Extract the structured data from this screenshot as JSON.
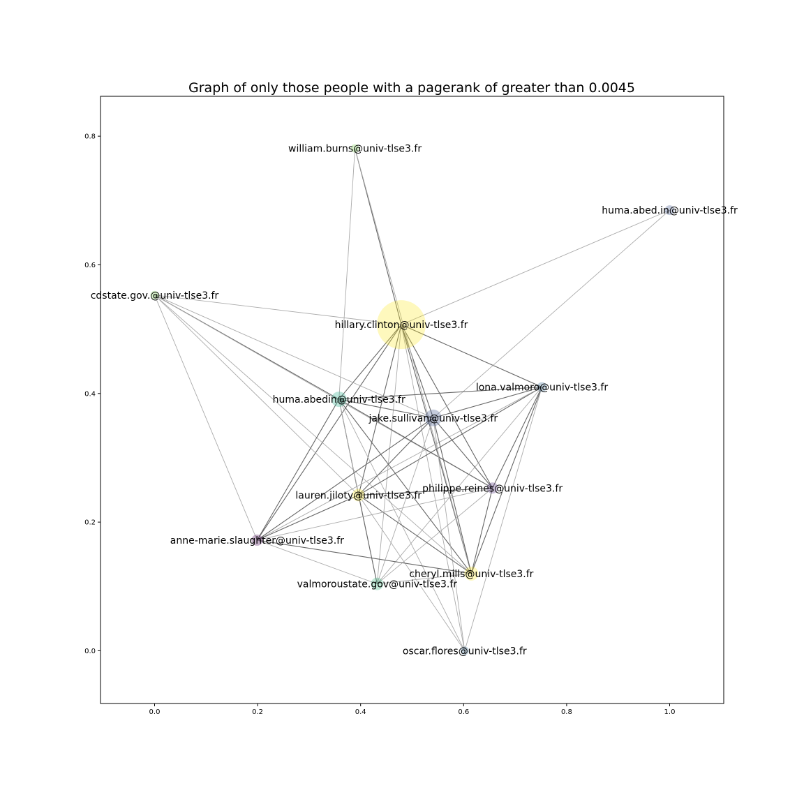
{
  "title": "Graph of only those people with a pagerank of greater than 0.0045",
  "chart_data": {
    "type": "network",
    "title": "Graph of only those people with a pagerank of greater than 0.0045",
    "xlim": [
      -0.105,
      1.105
    ],
    "ylim": [
      -0.082,
      0.862
    ],
    "x_ticks": [
      0.0,
      0.2,
      0.4,
      0.6,
      0.8,
      1.0
    ],
    "y_ticks": [
      0.0,
      0.2,
      0.4,
      0.6,
      0.8
    ],
    "x_tick_labels": [
      "0.0",
      "0.2",
      "0.4",
      "0.6",
      "0.8",
      "1.0"
    ],
    "y_tick_labels": [
      "0.0",
      "0.2",
      "0.4",
      "0.6",
      "0.8"
    ],
    "grid": false,
    "nodes": [
      {
        "id": "hillary",
        "label": "hillary.clinton@univ-tlse3.fr",
        "x": 0.479,
        "y": 0.507,
        "size": 35,
        "color": "#fde725"
      },
      {
        "id": "william",
        "label": "william.burns@univ-tlse3.fr",
        "x": 0.389,
        "y": 0.781,
        "size": 6,
        "color": "#7ad151"
      },
      {
        "id": "humaabedin2",
        "label": "huma.abed.in@univ-tlse3.fr",
        "x": 1.0,
        "y": 0.685,
        "size": 7,
        "color": "#3b528b"
      },
      {
        "id": "cdstate",
        "label": "cdstate.gov.@univ-tlse3.fr",
        "x": 0.0,
        "y": 0.553,
        "size": 6,
        "color": "#7ad151"
      },
      {
        "id": "lona",
        "label": "lona.valmoro@univ-tlse3.fr",
        "x": 0.752,
        "y": 0.41,
        "size": 7,
        "color": "#31688e"
      },
      {
        "id": "humaabedin",
        "label": "huma.abedin@univ-tlse3.fr",
        "x": 0.358,
        "y": 0.391,
        "size": 11,
        "color": "#22a884"
      },
      {
        "id": "jake",
        "label": "jake.sullivan@univ-tlse3.fr",
        "x": 0.541,
        "y": 0.362,
        "size": 12,
        "color": "#3b528b"
      },
      {
        "id": "philippe",
        "label": "philippe.reines@univ-tlse3.fr",
        "x": 0.656,
        "y": 0.253,
        "size": 8,
        "color": "#482878"
      },
      {
        "id": "lauren",
        "label": "lauren.jiloty@univ-tlse3.fr",
        "x": 0.396,
        "y": 0.242,
        "size": 9,
        "color": "#fde725"
      },
      {
        "id": "annemarie",
        "label": "anne-marie.slaughter@univ-tlse3.fr",
        "x": 0.199,
        "y": 0.172,
        "size": 8,
        "color": "#440154"
      },
      {
        "id": "cheryl",
        "label": "cheryl.mills@univ-tlse3.fr",
        "x": 0.615,
        "y": 0.12,
        "size": 10,
        "color": "#fde725"
      },
      {
        "id": "valmoroustate",
        "label": "valmoroustate.gov@univ-tlse3.fr",
        "x": 0.432,
        "y": 0.104,
        "size": 9,
        "color": "#35b779"
      },
      {
        "id": "oscar",
        "label": "oscar.flores@univ-tlse3.fr",
        "x": 0.602,
        "y": 0.0,
        "size": 6,
        "color": "#31688e"
      }
    ],
    "edges": [
      [
        "hillary",
        "william",
        1
      ],
      [
        "hillary",
        "humaabedin2",
        0
      ],
      [
        "hillary",
        "cdstate",
        0
      ],
      [
        "hillary",
        "lona",
        1
      ],
      [
        "hillary",
        "humaabedin",
        1
      ],
      [
        "hillary",
        "jake",
        1
      ],
      [
        "hillary",
        "philippe",
        1
      ],
      [
        "hillary",
        "lauren",
        1
      ],
      [
        "hillary",
        "annemarie",
        1
      ],
      [
        "hillary",
        "cheryl",
        1
      ],
      [
        "hillary",
        "valmoroustate",
        0
      ],
      [
        "hillary",
        "oscar",
        0
      ],
      [
        "william",
        "humaabedin",
        0
      ],
      [
        "william",
        "cheryl",
        0
      ],
      [
        "humaabedin2",
        "jake",
        0
      ],
      [
        "cdstate",
        "humaabedin",
        1
      ],
      [
        "cdstate",
        "jake",
        0
      ],
      [
        "cdstate",
        "philippe",
        0
      ],
      [
        "cdstate",
        "lauren",
        0
      ],
      [
        "cdstate",
        "cheryl",
        0
      ],
      [
        "cdstate",
        "annemarie",
        0
      ],
      [
        "lona",
        "humaabedin",
        1
      ],
      [
        "lona",
        "jake",
        1
      ],
      [
        "lona",
        "philippe",
        1
      ],
      [
        "lona",
        "lauren",
        1
      ],
      [
        "lona",
        "annemarie",
        0
      ],
      [
        "lona",
        "cheryl",
        1
      ],
      [
        "lona",
        "valmoroustate",
        0
      ],
      [
        "lona",
        "oscar",
        0
      ],
      [
        "humaabedin",
        "jake",
        1
      ],
      [
        "humaabedin",
        "philippe",
        1
      ],
      [
        "humaabedin",
        "lauren",
        1
      ],
      [
        "humaabedin",
        "annemarie",
        1
      ],
      [
        "humaabedin",
        "cheryl",
        1
      ],
      [
        "humaabedin",
        "valmoroustate",
        0
      ],
      [
        "humaabedin",
        "oscar",
        0
      ],
      [
        "jake",
        "philippe",
        1
      ],
      [
        "jake",
        "lauren",
        1
      ],
      [
        "jake",
        "annemarie",
        1
      ],
      [
        "jake",
        "cheryl",
        1
      ],
      [
        "jake",
        "valmoroustate",
        0
      ],
      [
        "jake",
        "oscar",
        0
      ],
      [
        "philippe",
        "lauren",
        1
      ],
      [
        "philippe",
        "cheryl",
        1
      ],
      [
        "philippe",
        "valmoroustate",
        0
      ],
      [
        "lauren",
        "annemarie",
        1
      ],
      [
        "lauren",
        "cheryl",
        1
      ],
      [
        "lauren",
        "valmoroustate",
        1
      ],
      [
        "lauren",
        "oscar",
        0
      ],
      [
        "annemarie",
        "cheryl",
        1
      ],
      [
        "annemarie",
        "valmoroustate",
        0
      ],
      [
        "annemarie",
        "philippe",
        0
      ],
      [
        "valmoroustate",
        "cheryl",
        0
      ]
    ]
  }
}
